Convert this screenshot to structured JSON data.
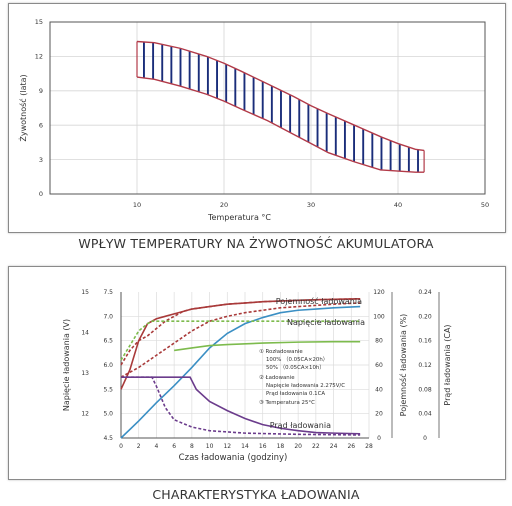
{
  "captions": {
    "top": "WPŁYW TEMPERATURY NA ŻYWOTNOŚĆ AKUMULATORA",
    "bottom": "CHARAKTERYSTYKA ŁADOWANIA"
  },
  "colors": {
    "band_edge": "#b23a48",
    "band_fill": "#1a2d7a",
    "capacity": "#a93a3a",
    "voltage": "#7dbb4d",
    "current": "#6b3c8c",
    "blue": "#3b8fc4",
    "axis": "#444444"
  },
  "chart_data": [
    {
      "type": "area",
      "title": "",
      "xlabel": "Temperatura °C",
      "ylabel": "Żywotność (lata)",
      "xlim": [
        0,
        50
      ],
      "ylim": [
        0,
        15
      ],
      "x_ticks": [
        "10",
        "20",
        "30",
        "40",
        "50"
      ],
      "y_ticks": [
        "0",
        "3",
        "6",
        "9",
        "12",
        "15"
      ],
      "grid": true,
      "series": [
        {
          "x": [
            10,
            12,
            15,
            18,
            20,
            22,
            25,
            28,
            30,
            32,
            35,
            38,
            40,
            42,
            43
          ],
          "values": [
            13.3,
            13.2,
            12.7,
            12.0,
            11.4,
            10.7,
            9.6,
            8.5,
            7.7,
            7.0,
            6.0,
            5.0,
            4.4,
            3.9,
            3.8
          ]
        },
        {
          "x": [
            10,
            12,
            15,
            18,
            20,
            22,
            25,
            28,
            30,
            32,
            35,
            38,
            40,
            42,
            43
          ],
          "values": [
            10.2,
            10.0,
            9.4,
            8.7,
            8.1,
            7.4,
            6.4,
            5.2,
            4.4,
            3.6,
            2.8,
            2.1,
            2.0,
            1.9,
            1.9
          ]
        }
      ]
    },
    {
      "type": "line",
      "title": "",
      "xlabel": "Czas ładowania (godziny)",
      "x_ticks": [
        "0",
        "2",
        "4",
        "6",
        "8",
        "10",
        "12",
        "14",
        "16",
        "18",
        "20",
        "22",
        "24",
        "26",
        "28"
      ],
      "xlim": [
        0,
        28
      ],
      "axes": [
        {
          "label": "Napięcie ładowania (V)",
          "ticks": [
            "12",
            "13",
            "14",
            "15"
          ],
          "range": [
            11.4,
            15
          ]
        },
        {
          "label": "",
          "ticks": [
            "4.5",
            "5.0",
            "5.5",
            "6.0",
            "6.5",
            "7.0",
            "7.5"
          ],
          "range": [
            4.5,
            7.5
          ]
        },
        {
          "label": "Pojemność ładowania (%)",
          "ticks": [
            "0",
            "20",
            "40",
            "60",
            "80",
            "100",
            "120"
          ],
          "range": [
            0,
            120
          ]
        },
        {
          "label": "Prąd ładowania (CA)",
          "ticks": [
            "0",
            "0.04",
            "0.08",
            "0.12",
            "0.16",
            "0.20",
            "0.24"
          ],
          "range": [
            0,
            0.24
          ]
        }
      ],
      "grid": true,
      "series_labels": {
        "capacity": "Pojemność ładowania",
        "voltage": "Napięcie ładowania",
        "current": "Prąd ładowania"
      },
      "annotations": [
        "① Rozładowanie",
        "100% （0.05CA×20h）",
        "50% （0.05CA×10h）",
        "② Ładowanie",
        "Napięcie ładowania 2.275V/C",
        "Prąd ładowania 0.1CA",
        "③ Temperatura 25°C"
      ],
      "series": [
        {
          "key": "voltage_solid",
          "axis": 1,
          "x": [
            0,
            1,
            2,
            3,
            4,
            5,
            6,
            7,
            8,
            10,
            12,
            16,
            20,
            24,
            27
          ],
          "values": [
            5.5,
            5.9,
            6.5,
            6.85,
            6.95,
            7.0,
            7.05,
            7.1,
            7.15,
            7.2,
            7.25,
            7.3,
            7.33,
            7.35,
            7.36
          ]
        },
        {
          "key": "voltage_dashed",
          "axis": 1,
          "x": [
            0,
            1,
            2,
            3,
            4,
            5,
            6,
            7,
            8,
            10,
            12,
            16,
            20,
            24,
            27
          ],
          "values": [
            6.0,
            6.3,
            6.5,
            6.6,
            6.75,
            6.9,
            7.0,
            7.1,
            7.15,
            7.2,
            7.25,
            7.3,
            7.33,
            7.35,
            7.36
          ]
        },
        {
          "key": "capacity_blue",
          "axis": 2,
          "x": [
            0,
            2,
            4,
            6,
            8,
            10,
            12,
            14,
            16,
            18,
            20,
            22,
            24,
            27
          ],
          "values": [
            0,
            14,
            29,
            43,
            58,
            74,
            86,
            94,
            99,
            103,
            105,
            106,
            107,
            108
          ]
        },
        {
          "key": "capacity_dashed",
          "axis": 2,
          "x": [
            0,
            2,
            3,
            4,
            6,
            8,
            10,
            12,
            14,
            16,
            18,
            20,
            22,
            24,
            27
          ],
          "values": [
            50,
            58,
            63,
            68,
            78,
            88,
            96,
            100,
            103,
            105,
            107,
            108,
            109,
            110,
            111
          ]
        },
        {
          "key": "voltage_green_solid",
          "axis": 1,
          "x": [
            6,
            8,
            10,
            12,
            16,
            20,
            24,
            27
          ],
          "values": [
            6.3,
            6.35,
            6.4,
            6.42,
            6.45,
            6.47,
            6.48,
            6.48
          ]
        },
        {
          "key": "voltage_green_dashed",
          "axis": 1,
          "x": [
            0,
            1,
            2,
            3,
            3.5,
            4,
            6,
            8,
            12,
            16,
            20,
            24,
            27
          ],
          "values": [
            6.1,
            6.4,
            6.7,
            6.85,
            6.9,
            6.9,
            6.9,
            6.9,
            6.9,
            6.9,
            6.9,
            6.9,
            6.9
          ]
        },
        {
          "key": "current_solid",
          "axis": 3,
          "x": [
            0,
            7.8,
            8.5,
            10,
            12,
            14,
            16,
            18,
            20,
            22,
            24,
            27
          ],
          "values": [
            0.1,
            0.1,
            0.08,
            0.06,
            0.045,
            0.032,
            0.022,
            0.016,
            0.012,
            0.009,
            0.008,
            0.007
          ]
        },
        {
          "key": "current_dashed",
          "axis": 3,
          "x": [
            0,
            3.5,
            4,
            5,
            6,
            8,
            10,
            14,
            20,
            27
          ],
          "values": [
            0.1,
            0.1,
            0.085,
            0.05,
            0.03,
            0.018,
            0.012,
            0.008,
            0.006,
            0.005
          ]
        }
      ]
    }
  ]
}
